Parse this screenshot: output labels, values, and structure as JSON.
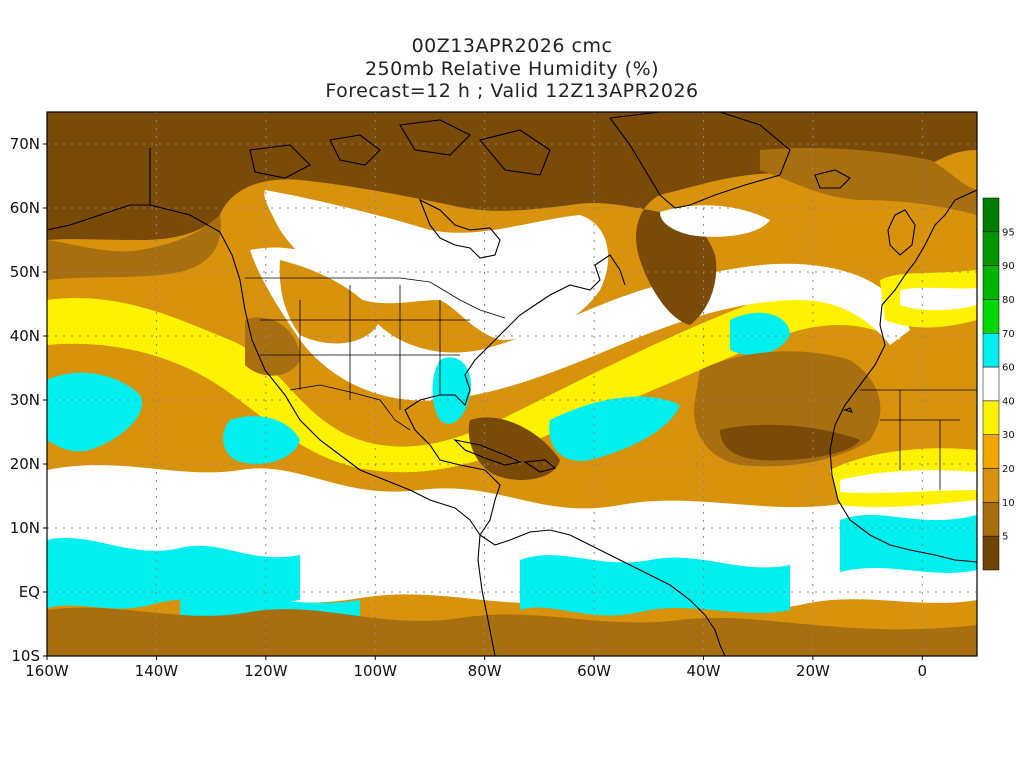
{
  "title": {
    "line1": "00Z13APR2026 cmc",
    "line2": "250mb Relative Humidity (%)",
    "line3": "Forecast=12 h ; Valid 12Z13APR2026"
  },
  "map": {
    "lat_labels": [
      "70N",
      "60N",
      "50N",
      "40N",
      "30N",
      "20N",
      "10N",
      "EQ",
      "10S"
    ],
    "lat_values": [
      70,
      60,
      50,
      40,
      30,
      20,
      10,
      0,
      -10
    ],
    "lon_labels": [
      "160W",
      "140W",
      "120W",
      "100W",
      "80W",
      "60W",
      "40W",
      "20W",
      "0"
    ],
    "lon_values": [
      -160,
      -140,
      -120,
      -100,
      -80,
      -60,
      -40,
      -20,
      0
    ],
    "lon_range": [
      -160,
      10
    ],
    "lat_range": [
      -10,
      75
    ],
    "colors": {
      "dark_brown": "#7a4a08",
      "brown": "#a86f10",
      "orange": "#d9920c",
      "yellow_orange": "#f0c400",
      "yellow": "#fff200",
      "white": "#ffffff",
      "cyan": "#00f0f0",
      "frame": "#000000"
    }
  },
  "colorbar": {
    "labels": [
      "5",
      "10",
      "20",
      "30",
      "40",
      "60",
      "70",
      "80",
      "90",
      "95"
    ],
    "colors": [
      "#6f4406",
      "#a86f10",
      "#d9920c",
      "#f0a800",
      "#fff200",
      "#ffffff",
      "#00f0f0",
      "#00d800",
      "#00b400",
      "#009600",
      "#007c00"
    ]
  }
}
